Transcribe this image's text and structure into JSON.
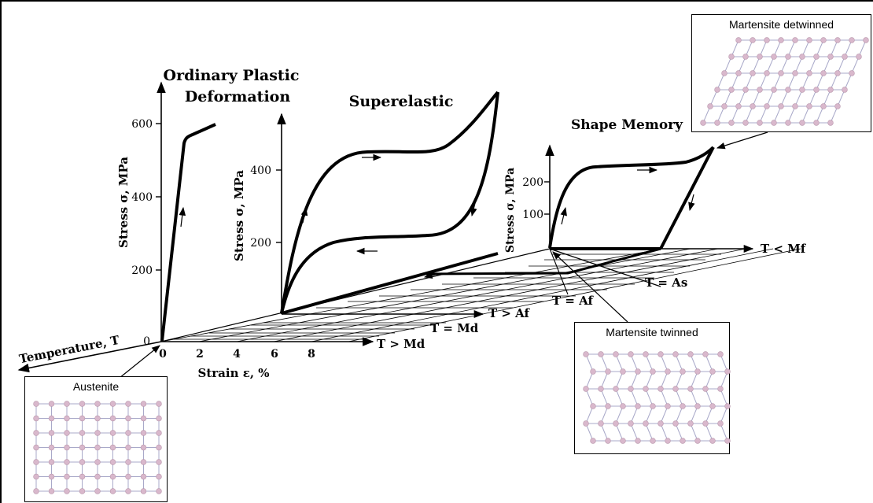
{
  "titles": {
    "plastic_line1": "Ordinary Plastic",
    "plastic_line2": "Deformation",
    "superelastic": "Superelastic",
    "shape_memory": "Shape Memory"
  },
  "axes": {
    "plastic_ylabel": "Stress σ, MPa",
    "plastic_yticks": [
      "600",
      "400",
      "200",
      "0"
    ],
    "super_ylabel": "Stress σ, MPa",
    "super_yticks": [
      "400",
      "200"
    ],
    "sm_ylabel": "Stress σ, MPa",
    "sm_yticks": [
      "200",
      "100"
    ],
    "strain_label": "Strain ε, %",
    "strain_ticks": [
      "0",
      "2",
      "4",
      "6",
      "8"
    ],
    "temperature_label": "Temperature, T"
  },
  "temperature_markers": {
    "t_gt_md": "T > Md",
    "t_eq_md": "T = Md",
    "t_gt_af": "T > Af",
    "t_eq_af": "T = Af",
    "t_eq_as": "T = As",
    "t_lt_mf": "T < Mf"
  },
  "insets": {
    "austenite": "Austenite",
    "martensite_twinned": "Martensite twinned",
    "martensite_detwinned": "Martensite detwinned"
  },
  "colors": {
    "lattice_atom": "#d9b8cc",
    "lattice_bond": "#a9a9c9",
    "ink": "#000000"
  }
}
